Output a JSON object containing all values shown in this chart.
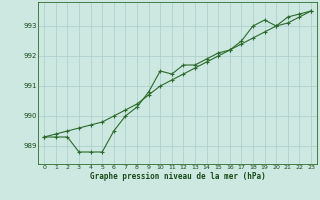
{
  "title": "Graphe pression niveau de la mer (hPa)",
  "x": [
    0,
    1,
    2,
    3,
    4,
    5,
    6,
    7,
    8,
    9,
    10,
    11,
    12,
    13,
    14,
    15,
    16,
    17,
    18,
    19,
    20,
    21,
    22,
    23
  ],
  "series1": [
    989.3,
    989.3,
    989.3,
    988.8,
    988.8,
    988.8,
    989.5,
    990.0,
    990.3,
    990.8,
    991.5,
    991.4,
    991.7,
    991.7,
    991.9,
    992.1,
    992.2,
    992.5,
    993.0,
    993.2,
    993.0,
    993.3,
    993.4,
    993.5
  ],
  "series2": [
    989.3,
    989.4,
    989.5,
    989.6,
    989.7,
    989.8,
    990.0,
    990.2,
    990.4,
    990.7,
    991.0,
    991.2,
    991.4,
    991.6,
    991.8,
    992.0,
    992.2,
    992.4,
    992.6,
    992.8,
    993.0,
    993.1,
    993.3,
    993.5
  ],
  "line_color": "#2d6a2d",
  "bg_color": "#cce8e0",
  "grid_color": "#aacccc",
  "title_color": "#1a4a1a",
  "ylim": [
    988.4,
    993.8
  ],
  "yticks": [
    989,
    990,
    991,
    992,
    993
  ],
  "xticks": [
    0,
    1,
    2,
    3,
    4,
    5,
    6,
    7,
    8,
    9,
    10,
    11,
    12,
    13,
    14,
    15,
    16,
    17,
    18,
    19,
    20,
    21,
    22,
    23
  ]
}
